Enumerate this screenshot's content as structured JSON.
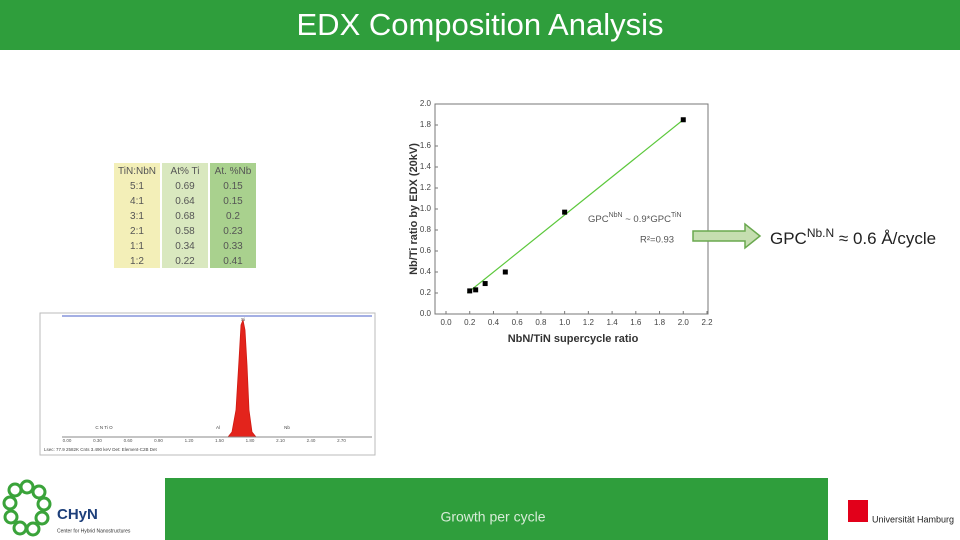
{
  "header": {
    "title": "EDX Composition Analysis"
  },
  "table": {
    "columns": [
      "TiN:NbN",
      "At% Ti",
      "At. %Nb"
    ],
    "rows": [
      [
        "5:1",
        "0.69",
        "0.15"
      ],
      [
        "4:1",
        "0.64",
        "0.15"
      ],
      [
        "3:1",
        "0.68",
        "0.2"
      ],
      [
        "2:1",
        "0.58",
        "0.23"
      ],
      [
        "1:1",
        "0.34",
        "0.33"
      ],
      [
        "1:2",
        "0.22",
        "0.41"
      ]
    ]
  },
  "chart": {
    "type": "scatter",
    "xlabel": "NbN/TiN supercycle ratio",
    "ylabel": "Nb/Ti ratio by EDX (20kV)",
    "x": [
      0.2,
      0.25,
      0.33,
      0.5,
      1.0,
      2.0
    ],
    "series": [
      {
        "color": "#000000",
        "values": [
          0.22,
          0.23,
          0.29,
          0.4,
          0.97,
          1.85
        ]
      }
    ],
    "fit": {
      "color": "#5cc83c",
      "x": [
        0.18,
        2.0
      ],
      "y": [
        0.2,
        1.85
      ]
    },
    "annotation": {
      "base": "GPC",
      "sup1": "NbN",
      "mid": " ~ 0.9*GPC",
      "sup2": "TiN",
      "r2": "R²=0.93"
    },
    "xlim": [
      0,
      2.2
    ],
    "ylim": [
      0,
      2.0
    ],
    "xticks": [
      {
        "value": 0,
        "label": "0.0"
      },
      0.2,
      0.4,
      0.6,
      0.8,
      {
        "value": 1,
        "label": "1.0"
      },
      1.2,
      1.4,
      1.6,
      1.8,
      {
        "value": 2,
        "label": "2.0"
      },
      2.2
    ],
    "yticks": [
      {
        "value": 0,
        "label": "0.0"
      },
      0.2,
      0.4,
      0.6,
      0.8,
      {
        "value": 1,
        "label": "1.0"
      },
      1.2,
      1.4,
      1.6,
      1.8,
      {
        "value": 2,
        "label": "2.0"
      }
    ]
  },
  "result": {
    "base": "GPC",
    "sup": "Nb.N",
    "rest": " ≈ 0.6 Å/cycle"
  },
  "spectrum": {
    "xticks": [
      "0.00",
      "0.30",
      "0.60",
      "0.90",
      "1.20",
      "1.50",
      "1.80",
      "2.10",
      "2.40",
      "2.70"
    ],
    "peaks": [
      "C  N Ti  O",
      "Al",
      "Si",
      "Nb"
    ],
    "footer": "Lsec: 77.9    2582K Cnts    3.490 keV    Det: Element-C2B Det"
  },
  "footer": {
    "caption": "Growth per cycle"
  },
  "logos": {
    "chyn": "CHyN",
    "chyn_sub": "Center for Hybrid Nanostructures",
    "uhh": "Universität Hamburg"
  }
}
